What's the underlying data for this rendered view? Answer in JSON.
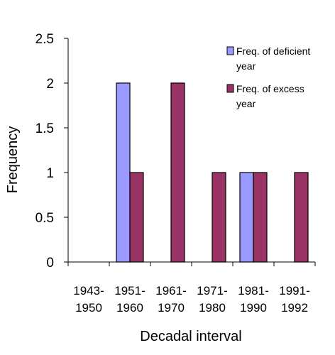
{
  "chart_data": {
    "type": "bar",
    "title": "",
    "xlabel": "Decadal interval",
    "ylabel": "Frequency",
    "ylim": [
      0,
      2.5
    ],
    "yticks": [
      "0",
      "0.5",
      "1",
      "1.5",
      "2",
      "2.5"
    ],
    "categories": [
      [
        "1943-",
        "1950"
      ],
      [
        "1951-",
        "1960"
      ],
      [
        "1961-",
        "1970"
      ],
      [
        "1971-",
        "1980"
      ],
      [
        "1981-",
        "1990"
      ],
      [
        "1991-",
        "1992"
      ]
    ],
    "series": [
      {
        "name": "Freq. of deficient year",
        "legend_lines": [
          "Freq. of deficient",
          "year"
        ],
        "color": "#9999FF",
        "values": [
          0,
          2,
          0,
          0,
          1,
          0
        ]
      },
      {
        "name": "Freq. of excess year",
        "legend_lines": [
          "Freq. of excess",
          "year"
        ],
        "color": "#993366",
        "values": [
          0,
          1,
          2,
          1,
          1,
          1
        ]
      }
    ],
    "legend": "top-right",
    "grid": false
  }
}
